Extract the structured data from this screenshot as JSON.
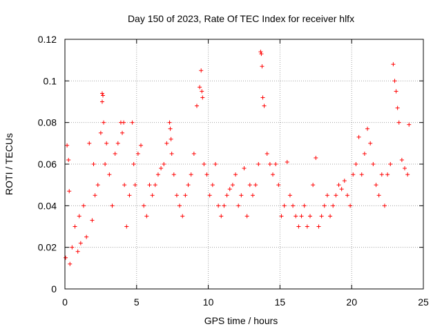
{
  "chart_data": {
    "type": "scatter",
    "title": "Day 150 of 2023, Rate Of TEC Index for receiver hlfx",
    "xlabel": "GPS time / hours",
    "ylabel": "ROTI / TECUs",
    "xlim": [
      0,
      25
    ],
    "ylim": [
      0,
      0.12
    ],
    "xticks": [
      "0",
      "5",
      "10",
      "15",
      "20",
      "25"
    ],
    "yticks": [
      "0",
      "0.02",
      "0.04",
      "0.06",
      "0.08",
      "0.1",
      "0.12"
    ],
    "grid": true,
    "marker": "+",
    "color": "#ff0000",
    "series": [
      {
        "x": [
          0.05,
          0.15,
          0.25,
          0.3,
          0.35,
          0.5,
          0.7,
          0.9,
          1.0,
          1.1,
          1.3,
          1.5,
          1.7,
          1.9,
          2.0,
          2.1,
          2.3,
          2.5,
          2.6,
          2.6,
          2.65,
          2.7,
          2.8,
          2.9,
          3.1,
          3.3,
          3.5,
          3.7,
          3.9,
          4.0,
          4.1,
          4.15,
          4.3,
          4.5,
          4.7,
          4.8,
          4.9,
          5.1,
          5.3,
          5.5,
          5.7,
          5.9,
          6.1,
          6.3,
          6.5,
          6.7,
          6.9,
          7.1,
          7.3,
          7.35,
          7.4,
          7.45,
          7.6,
          7.8,
          8.0,
          8.2,
          8.4,
          8.6,
          8.8,
          9.0,
          9.2,
          9.4,
          9.5,
          9.55,
          9.6,
          9.7,
          9.9,
          10.1,
          10.3,
          10.5,
          10.7,
          10.9,
          11.1,
          11.3,
          11.5,
          11.7,
          11.9,
          12.1,
          12.3,
          12.5,
          12.7,
          12.9,
          13.1,
          13.3,
          13.5,
          13.65,
          13.7,
          13.75,
          13.8,
          13.9,
          14.1,
          14.3,
          14.5,
          14.7,
          14.9,
          15.1,
          15.3,
          15.5,
          15.7,
          15.9,
          16.1,
          16.3,
          16.5,
          16.7,
          16.9,
          17.1,
          17.3,
          17.5,
          17.7,
          17.9,
          18.1,
          18.3,
          18.5,
          18.7,
          18.9,
          19.1,
          19.3,
          19.5,
          19.7,
          19.9,
          20.1,
          20.3,
          20.5,
          20.7,
          20.9,
          21.1,
          21.3,
          21.5,
          21.7,
          21.9,
          22.1,
          22.3,
          22.5,
          22.7,
          22.9,
          23.0,
          23.1,
          23.2,
          23.3,
          23.5,
          23.7,
          23.9,
          24.0
        ],
        "y": [
          0.015,
          0.069,
          0.062,
          0.047,
          0.012,
          0.02,
          0.03,
          0.018,
          0.035,
          0.022,
          0.04,
          0.025,
          0.07,
          0.033,
          0.06,
          0.045,
          0.05,
          0.075,
          0.094,
          0.09,
          0.093,
          0.08,
          0.06,
          0.07,
          0.055,
          0.04,
          0.065,
          0.07,
          0.08,
          0.075,
          0.08,
          0.05,
          0.03,
          0.045,
          0.08,
          0.06,
          0.05,
          0.065,
          0.069,
          0.04,
          0.035,
          0.05,
          0.045,
          0.05,
          0.055,
          0.058,
          0.06,
          0.07,
          0.08,
          0.077,
          0.072,
          0.065,
          0.055,
          0.045,
          0.04,
          0.035,
          0.045,
          0.05,
          0.055,
          0.065,
          0.088,
          0.097,
          0.105,
          0.095,
          0.092,
          0.06,
          0.055,
          0.045,
          0.05,
          0.06,
          0.04,
          0.035,
          0.04,
          0.045,
          0.048,
          0.05,
          0.055,
          0.04,
          0.045,
          0.058,
          0.035,
          0.05,
          0.045,
          0.05,
          0.06,
          0.114,
          0.113,
          0.107,
          0.092,
          0.088,
          0.065,
          0.06,
          0.055,
          0.06,
          0.05,
          0.035,
          0.04,
          0.061,
          0.045,
          0.04,
          0.035,
          0.03,
          0.035,
          0.04,
          0.03,
          0.035,
          0.05,
          0.063,
          0.03,
          0.035,
          0.04,
          0.045,
          0.035,
          0.04,
          0.045,
          0.05,
          0.048,
          0.052,
          0.045,
          0.04,
          0.055,
          0.06,
          0.073,
          0.055,
          0.065,
          0.077,
          0.07,
          0.06,
          0.05,
          0.045,
          0.055,
          0.04,
          0.055,
          0.06,
          0.108,
          0.1,
          0.095,
          0.087,
          0.08,
          0.062,
          0.058,
          0.055,
          0.079
        ]
      }
    ]
  }
}
